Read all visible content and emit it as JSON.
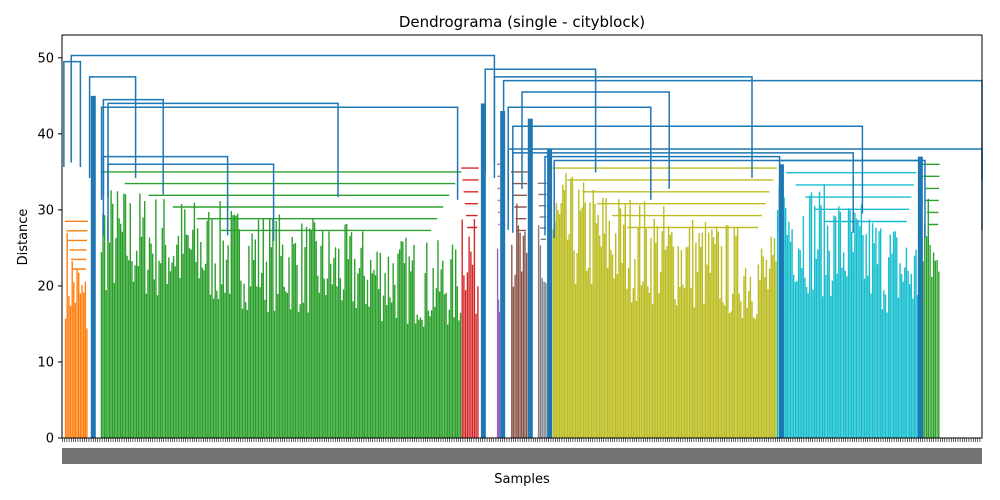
{
  "chart_data": {
    "type": "dendrogram",
    "title": "Dendrograma (single - cityblock)",
    "xlabel": "Samples",
    "ylabel": "Distance",
    "ylim": [
      0,
      53
    ],
    "yticks": [
      0,
      10,
      20,
      30,
      40,
      50
    ],
    "grid": false,
    "legend": "none",
    "link_color_default": "#1f77b4",
    "clusters": [
      {
        "color": "#ff7f0e",
        "x_range": [
          0.3,
          2.8
        ],
        "leaves_max_height": 28.5,
        "merge_height": 28.5
      },
      {
        "color": "#2ca02c",
        "x_range": [
          4.2,
          43.4
        ],
        "leaves_max_height": 34.0,
        "merge_height": 35.0
      },
      {
        "color": "#d62728",
        "x_range": [
          43.4,
          45.3
        ],
        "leaves_max_height": 35.0,
        "merge_height": 35.5
      },
      {
        "color": "#9467bd",
        "x_range": [
          47.3,
          47.6
        ],
        "leaves_max_height": 36.0,
        "merge_height": 36.0
      },
      {
        "color": "#8c564b",
        "x_range": [
          48.8,
          50.6
        ],
        "leaves_max_height": 34.5,
        "merge_height": 35.0
      },
      {
        "color": "#7f7f7f",
        "x_range": [
          51.7,
          52.7
        ],
        "leaves_max_height": 33.0,
        "merge_height": 33.5
      },
      {
        "color": "#bcbd22",
        "x_range": [
          53.3,
          77.7
        ],
        "leaves_max_height": 35.5,
        "merge_height": 35.5
      },
      {
        "color": "#17becf",
        "x_range": [
          77.7,
          93.1
        ],
        "leaves_max_height": 36.5,
        "merge_height": 36.5
      },
      {
        "color": "#2ca02c",
        "x_range": [
          93.5,
          95.4
        ],
        "leaves_max_height": 35.0,
        "merge_height": 36.0
      }
    ],
    "blue_links": [
      {
        "x": [
          0.2,
          2.0
        ],
        "height": 49.5
      },
      {
        "x": [
          3.0,
          8.0
        ],
        "height": 47.5
      },
      {
        "x": [
          4.5,
          11.0
        ],
        "height": 44.5
      },
      {
        "x": [
          5.0,
          30.0
        ],
        "height": 44.0
      },
      {
        "x": [
          4.3,
          43.0
        ],
        "height": 43.5
      },
      {
        "x": [
          4.5,
          18.0
        ],
        "height": 37.0
      },
      {
        "x": [
          5.0,
          23.0
        ],
        "height": 36.0
      },
      {
        "x": [
          1.0,
          47.0
        ],
        "height": 50.3
      },
      {
        "x": [
          46.0,
          58.0
        ],
        "height": 48.5
      },
      {
        "x": [
          47.0,
          75.0
        ],
        "height": 47.5
      },
      {
        "x": [
          48.0,
          100.0
        ],
        "height": 47.0
      },
      {
        "x": [
          50.0,
          66.0
        ],
        "height": 45.5
      },
      {
        "x": [
          48.5,
          64.0
        ],
        "height": 43.5
      },
      {
        "x": [
          49.0,
          87.0
        ],
        "height": 41.0
      },
      {
        "x": [
          48.5,
          100.0
        ],
        "height": 38.0
      },
      {
        "x": [
          49.0,
          86.0
        ],
        "height": 37.5
      },
      {
        "x": [
          52.5,
          78.0
        ],
        "height": 37.0
      },
      {
        "x": [
          53.5,
          93.8
        ],
        "height": 36.5
      }
    ]
  }
}
